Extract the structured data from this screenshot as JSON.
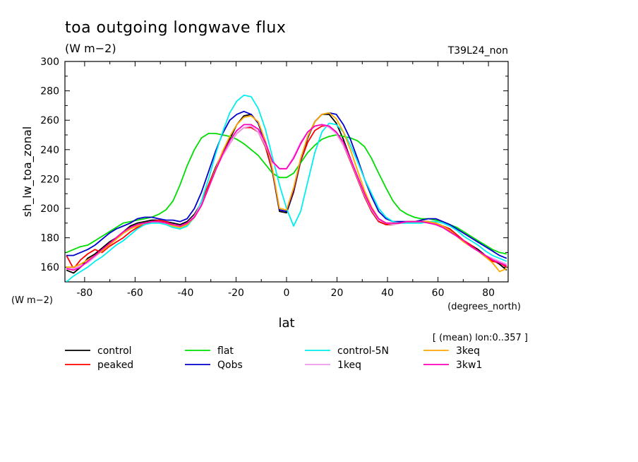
{
  "chart_data": {
    "type": "line",
    "title": "toa outgoing longwave flux",
    "subtitle": "(W m−2)",
    "run_label": "T39L24_non",
    "xlabel": "lat",
    "ylabel": "sh_lw_toa_zonal",
    "x_units": "(degrees_north)",
    "y_units": "(W m−2)",
    "averaging_note": "[ (mean) lon:0..357 ]",
    "xlim": [
      -87.8,
      87.8
    ],
    "ylim": [
      150,
      300
    ],
    "x_ticks": [
      -80,
      -60,
      -40,
      -20,
      0,
      20,
      40,
      60,
      80
    ],
    "y_ticks": [
      160,
      180,
      200,
      220,
      240,
      260,
      280,
      300
    ],
    "x": [
      -87.2,
      -84.4,
      -81.6,
      -78.8,
      -75.9,
      -73.1,
      -70.3,
      -67.5,
      -64.7,
      -61.9,
      -59.1,
      -56.2,
      -53.4,
      -50.6,
      -47.8,
      -45.0,
      -42.2,
      -39.4,
      -36.5,
      -33.7,
      -30.9,
      -28.1,
      -25.3,
      -22.5,
      -19.7,
      -16.9,
      -14.0,
      -11.2,
      -8.4,
      -5.6,
      -2.8,
      0.0,
      2.8,
      5.6,
      8.4,
      11.2,
      14.0,
      16.9,
      19.7,
      22.5,
      25.3,
      28.1,
      30.9,
      33.7,
      36.5,
      39.4,
      42.2,
      45.0,
      47.8,
      50.6,
      53.4,
      56.2,
      59.1,
      61.9,
      64.7,
      67.5,
      70.3,
      73.1,
      75.9,
      78.8,
      81.6,
      84.4,
      87.2
    ],
    "series": [
      {
        "name": "control",
        "color": "#000000",
        "values": [
          158,
          156,
          160,
          166,
          169,
          173,
          177,
          180,
          184,
          188,
          190,
          191,
          192,
          192,
          191,
          190,
          189,
          191,
          196,
          204,
          216,
          228,
          238,
          247,
          257,
          263,
          264,
          258,
          244,
          225,
          198,
          197,
          211,
          232,
          248,
          259,
          264,
          264,
          258,
          247,
          234,
          221,
          208,
          198,
          191,
          189,
          189,
          190,
          191,
          191,
          191,
          191,
          190,
          188,
          186,
          182,
          178,
          175,
          172,
          168,
          165,
          162,
          158
        ]
      },
      {
        "name": "peaked",
        "color": "#ff0000",
        "values": [
          168,
          159,
          165,
          169,
          172,
          170,
          174,
          177,
          180,
          184,
          187,
          189,
          191,
          192,
          191,
          189,
          188,
          190,
          195,
          204,
          216,
          227,
          236,
          244,
          251,
          255,
          255,
          252,
          242,
          225,
          199,
          198,
          212,
          232,
          245,
          253,
          256,
          256,
          251,
          243,
          232,
          220,
          208,
          198,
          191,
          189,
          189,
          190,
          191,
          191,
          191,
          191,
          190,
          188,
          186,
          182,
          178,
          175,
          171,
          167,
          164,
          163,
          160
        ]
      },
      {
        "name": "flat",
        "color": "#00dd00",
        "values": [
          170,
          172,
          174,
          175,
          178,
          181,
          184,
          187,
          190,
          191,
          192,
          193,
          194,
          196,
          199,
          205,
          216,
          229,
          240,
          248,
          251,
          251,
          250,
          249,
          247,
          244,
          240,
          236,
          230,
          224,
          221,
          221,
          224,
          231,
          238,
          243,
          247,
          249,
          250,
          249,
          248,
          246,
          242,
          234,
          224,
          214,
          205,
          199,
          196,
          194,
          193,
          193,
          192,
          191,
          189,
          187,
          184,
          181,
          178,
          175,
          172,
          170,
          169
        ]
      },
      {
        "name": "Qobs",
        "color": "#0000cc",
        "values": [
          168,
          168,
          170,
          172,
          175,
          179,
          183,
          186,
          188,
          190,
          193,
          194,
          194,
          193,
          192,
          192,
          191,
          193,
          200,
          211,
          225,
          239,
          251,
          260,
          264,
          266,
          264,
          258,
          245,
          226,
          199,
          198,
          213,
          233,
          249,
          259,
          264,
          265,
          264,
          257,
          247,
          234,
          220,
          208,
          198,
          193,
          191,
          191,
          191,
          191,
          192,
          193,
          193,
          191,
          189,
          186,
          183,
          180,
          177,
          174,
          171,
          168,
          166
        ]
      },
      {
        "name": "control-5N",
        "color": "#00eeee",
        "values": [
          150,
          154,
          157,
          160,
          164,
          167,
          171,
          175,
          178,
          182,
          186,
          189,
          190,
          190,
          189,
          187,
          186,
          188,
          194,
          205,
          220,
          237,
          252,
          265,
          273,
          277,
          276,
          268,
          254,
          235,
          216,
          200,
          188,
          198,
          218,
          238,
          252,
          258,
          257,
          252,
          243,
          232,
          220,
          210,
          200,
          194,
          191,
          190,
          190,
          190,
          190,
          191,
          191,
          190,
          188,
          185,
          181,
          178,
          175,
          171,
          168,
          166,
          164
        ]
      },
      {
        "name": "1keq",
        "color": "#ee99ee",
        "values": [
          160,
          159,
          161,
          163,
          167,
          171,
          175,
          179,
          183,
          186,
          189,
          190,
          191,
          191,
          190,
          189,
          188,
          190,
          195,
          203,
          214,
          226,
          236,
          244,
          251,
          255,
          256,
          252,
          243,
          231,
          227,
          227,
          235,
          245,
          252,
          256,
          257,
          255,
          251,
          243,
          233,
          221,
          209,
          199,
          192,
          190,
          189,
          190,
          191,
          191,
          191,
          190,
          189,
          187,
          184,
          181,
          177,
          174,
          171,
          168,
          166,
          164,
          162
        ]
      },
      {
        "name": "3keq",
        "color": "#ffaa00",
        "values": [
          160,
          160,
          162,
          165,
          168,
          171,
          175,
          179,
          183,
          186,
          188,
          190,
          191,
          191,
          190,
          188,
          187,
          189,
          194,
          202,
          214,
          227,
          239,
          249,
          257,
          262,
          263,
          259,
          246,
          227,
          200,
          199,
          214,
          234,
          249,
          259,
          264,
          265,
          261,
          252,
          240,
          226,
          212,
          201,
          193,
          190,
          190,
          190,
          191,
          191,
          191,
          191,
          190,
          188,
          185,
          181,
          177,
          174,
          171,
          167,
          163,
          157,
          159
        ]
      },
      {
        "name": "3kw1",
        "color": "#ff00bb",
        "values": [
          159,
          158,
          160,
          164,
          168,
          172,
          176,
          180,
          184,
          187,
          189,
          190,
          191,
          191,
          190,
          189,
          188,
          190,
          194,
          202,
          214,
          226,
          237,
          246,
          253,
          257,
          257,
          254,
          245,
          232,
          227,
          227,
          234,
          244,
          252,
          256,
          257,
          256,
          252,
          245,
          234,
          222,
          210,
          200,
          193,
          190,
          190,
          190,
          191,
          191,
          191,
          190,
          189,
          187,
          184,
          181,
          178,
          174,
          171,
          168,
          165,
          163,
          161
        ]
      }
    ]
  }
}
